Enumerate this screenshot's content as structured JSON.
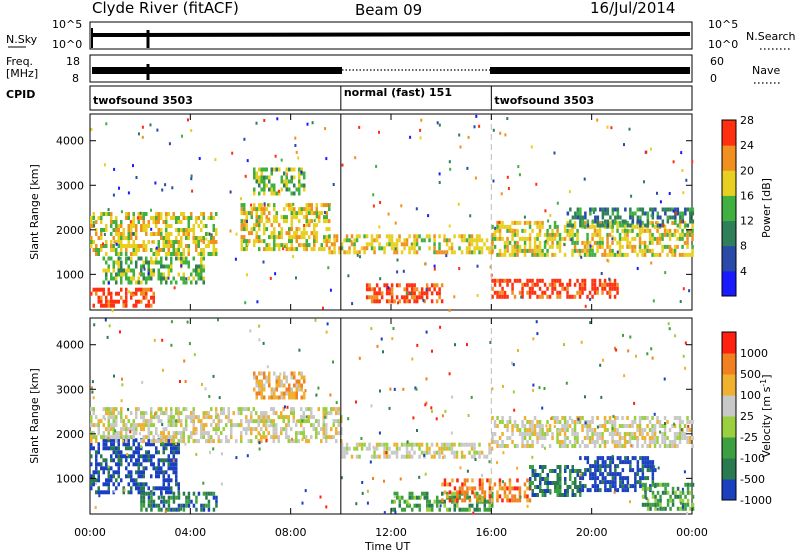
{
  "header": {
    "title": "Clyde River (fitACF)",
    "beam": "Beam 09",
    "date": "16/Jul/2014"
  },
  "status_panels": {
    "nsky_label": "N.Sky",
    "nsky_ticks": [
      "10^5",
      "10^0"
    ],
    "nsearch_label": "N.Search",
    "nsearch_ticks": [
      "10^5",
      "10^0"
    ],
    "freq_label": "Freq.",
    "freq_unit": "[MHz]",
    "freq_ticks": [
      "18",
      "8"
    ],
    "nave_label": "Nave",
    "nave_ticks": [
      "60",
      "0"
    ],
    "cpid_label": "CPID",
    "cpid_segments": [
      {
        "name": "twofsound 3503",
        "start_hour": 0,
        "end_hour": 10
      },
      {
        "name": "normal (fast) 151",
        "start_hour": 10,
        "end_hour": 16
      },
      {
        "name": "twofsound 3503",
        "start_hour": 16,
        "end_hour": 24
      }
    ]
  },
  "chart_data": [
    {
      "type": "heatmap",
      "name": "power",
      "ylabel": "Slant Range [km]",
      "yticks": [
        "1000",
        "2000",
        "3000",
        "4000"
      ],
      "ylim": [
        200,
        4600
      ],
      "x_ticks": [
        "00:00",
        "04:00",
        "08:00",
        "12:00",
        "16:00",
        "20:00",
        "00:00"
      ],
      "xlim_hours": [
        0,
        24
      ],
      "colorbar": {
        "label": "Power [dB]",
        "ticks": [
          "4",
          "8",
          "12",
          "16",
          "20",
          "24",
          "28"
        ],
        "colors": [
          "#1a1aff",
          "#2a4aa8",
          "#2f7f5a",
          "#40b040",
          "#e8d020",
          "#f09020",
          "#ff3010"
        ]
      },
      "bands": [
        {
          "h0": 0.0,
          "h1": 2.5,
          "r0": 300,
          "r1": 700,
          "level": 6
        },
        {
          "h0": 0.0,
          "h1": 5.0,
          "r0": 1500,
          "r1": 2400,
          "level": 4
        },
        {
          "h0": 0.5,
          "h1": 4.5,
          "r0": 800,
          "r1": 1400,
          "level": 3
        },
        {
          "h0": 6.0,
          "h1": 9.5,
          "r0": 1600,
          "r1": 2600,
          "level": 4
        },
        {
          "h0": 6.5,
          "h1": 8.5,
          "r0": 2800,
          "r1": 3400,
          "level": 3
        },
        {
          "h0": 9.5,
          "h1": 16.0,
          "r0": 1500,
          "r1": 1900,
          "level": 4
        },
        {
          "h0": 11.0,
          "h1": 14.0,
          "r0": 400,
          "r1": 800,
          "level": 6
        },
        {
          "h0": 16.0,
          "h1": 21.0,
          "r0": 500,
          "r1": 900,
          "level": 6
        },
        {
          "h0": 16.0,
          "h1": 24.0,
          "r0": 1400,
          "r1": 2200,
          "level": 4
        },
        {
          "h0": 19.0,
          "h1": 24.0,
          "r0": 2100,
          "r1": 2500,
          "level": 2
        }
      ]
    },
    {
      "type": "heatmap",
      "name": "velocity",
      "ylabel": "Slant Range [km]",
      "yticks": [
        "1000",
        "2000",
        "3000",
        "4000"
      ],
      "ylim": [
        200,
        4600
      ],
      "x_ticks": [
        "00:00",
        "04:00",
        "08:00",
        "12:00",
        "16:00",
        "20:00",
        "00:00"
      ],
      "xlim_hours": [
        0,
        24
      ],
      "xlabel": "Time UT",
      "colorbar": {
        "label": "Velocity [m s",
        "label_sup": "-1",
        "label_end": "]",
        "ticks": [
          "1000",
          "500",
          "100",
          "25",
          "-25",
          "-100",
          "-500",
          "-1000"
        ],
        "colors": [
          "#1a3fbf",
          "#2a7a50",
          "#3ca040",
          "#9ad040",
          "#c8c8c8",
          "#f0b030",
          "#f08020",
          "#ff2010"
        ]
      },
      "bands": [
        {
          "h0": 0.0,
          "h1": 3.5,
          "r0": 700,
          "r1": 1900,
          "level": 0
        },
        {
          "h0": 0.0,
          "h1": 10.0,
          "r0": 1800,
          "r1": 2600,
          "level": 4
        },
        {
          "h0": 2.0,
          "h1": 5.0,
          "r0": 300,
          "r1": 700,
          "level": 1
        },
        {
          "h0": 6.5,
          "h1": 8.5,
          "r0": 2800,
          "r1": 3400,
          "level": 5
        },
        {
          "h0": 10.0,
          "h1": 16.0,
          "r0": 1500,
          "r1": 1800,
          "level": 4
        },
        {
          "h0": 12.0,
          "h1": 16.0,
          "r0": 300,
          "r1": 700,
          "level": 2
        },
        {
          "h0": 14.0,
          "h1": 17.5,
          "r0": 500,
          "r1": 1000,
          "level": 6
        },
        {
          "h0": 17.5,
          "h1": 19.5,
          "r0": 600,
          "r1": 1300,
          "level": 1
        },
        {
          "h0": 19.5,
          "h1": 22.5,
          "r0": 700,
          "r1": 1500,
          "level": 0
        },
        {
          "h0": 16.0,
          "h1": 24.0,
          "r0": 1700,
          "r1": 2400,
          "level": 4
        },
        {
          "h0": 22.0,
          "h1": 24.0,
          "r0": 300,
          "r1": 900,
          "level": 2
        }
      ]
    }
  ]
}
